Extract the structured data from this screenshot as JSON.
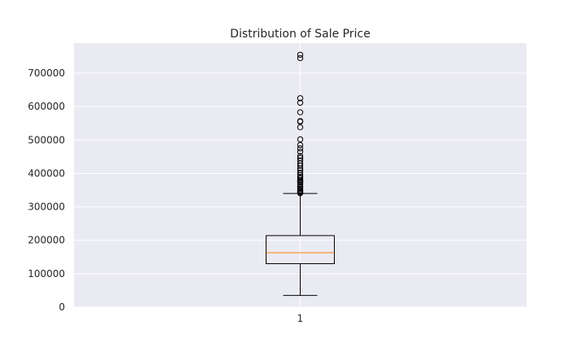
{
  "chart_data": {
    "type": "box",
    "title": "Distribution of Sale Price",
    "xlabel": "",
    "ylabel": "",
    "categories": [
      "1"
    ],
    "ylim": [
      0,
      790000
    ],
    "yticks": [
      0,
      100000,
      200000,
      300000,
      400000,
      500000,
      600000,
      700000
    ],
    "ytick_labels": [
      "0",
      "100000",
      "200000",
      "300000",
      "400000",
      "500000",
      "600000",
      "700000"
    ],
    "grid": true,
    "box": {
      "whisker_low": 34900,
      "q1": 129975,
      "median": 163000,
      "q3": 214000,
      "whisker_high": 340000,
      "outliers": [
        341000,
        342643,
        345000,
        348000,
        350000,
        354000,
        359100,
        360000,
        367294,
        372500,
        375000,
        378500,
        380000,
        385000,
        390000,
        395000,
        402000,
        410000,
        415298,
        423000,
        430000,
        438780,
        446261,
        451950,
        465000,
        475000,
        485000,
        501837,
        538000,
        555000,
        556581,
        582933,
        611657,
        625000,
        745000,
        755000
      ]
    },
    "colors": {
      "background": "#eaeaf2",
      "grid": "#ffffff",
      "box": "#000000",
      "median": "#ff7f0e"
    }
  }
}
